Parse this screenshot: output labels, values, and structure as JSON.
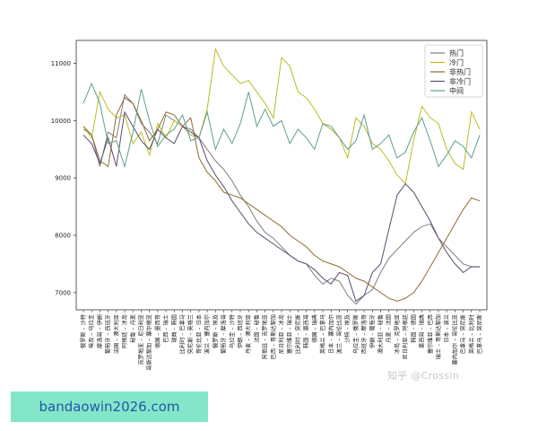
{
  "chart_data": {
    "type": "line",
    "ylim": [
      6700,
      11400
    ],
    "yticks": [
      7000,
      8000,
      9000,
      10000,
      11000
    ],
    "grid": false,
    "legend_position": "top-right",
    "categories": [
      "俄罗斯 – 沙特",
      "埃及 – 乌拉圭",
      "摩洛哥 – 伊朗",
      "葡萄牙 – 西班牙",
      "法国 – 澳大利亚",
      "阿根廷 – 冰岛",
      "秘鲁 – 丹麦",
      "克罗地亚 – 尼日利亚",
      "哥斯达黎加 – 塞尔维亚",
      "德国 – 墨西哥",
      "巴西 – 瑞士",
      "瑞典 – 韩国",
      "比利时 – 巴拿马",
      "突尼斯 – 英格兰",
      "哥伦比亚 – 日本",
      "波兰 – 塞内加尔",
      "俄罗斯 – 埃及",
      "葡萄牙 – 摩洛哥",
      "乌拉圭 – 沙特",
      "伊朗 – 西班牙",
      "丹麦 – 澳大利亚",
      "法国 – 秘鲁",
      "阿根廷 – 克罗地亚",
      "巴西 – 哥斯达黎加",
      "尼日利亚 – 冰岛",
      "塞尔维亚 – 瑞士",
      "比利时 – 突尼斯",
      "韩国 – 墨西哥",
      "德国 – 瑞典",
      "英格兰 – 巴拿马",
      "日本 – 塞内加尔",
      "波兰 – 哥伦比亚",
      "沙特 – 埃及",
      "乌拉圭 – 俄罗斯",
      "西班牙 – 摩洛哥",
      "伊朗 – 葡萄牙",
      "澳大利亚 – 秘鲁",
      "丹麦 – 法国",
      "冰岛 – 克罗地亚",
      "尼日利亚 – 阿根廷",
      "韩国 – 德国",
      "墨西哥 – 瑞典",
      "塞尔维亚 – 巴西",
      "瑞士 – 哥斯达黎加",
      "日本 – 波兰",
      "塞内加尔 – 哥伦比亚",
      "巴拿马 – 突尼斯",
      "英格兰 – 比利时",
      "巴拿马 – 突尼斯"
    ],
    "series": [
      {
        "name": "热门",
        "color": "#7f7f7f",
        "values": [
          9850,
          9750,
          9200,
          9800,
          9700,
          10450,
          10300,
          9950,
          9800,
          9600,
          10100,
          10000,
          9900,
          9850,
          9700,
          9500,
          9300,
          9150,
          8950,
          8700,
          8500,
          8250,
          8050,
          7950,
          7800,
          7650,
          7550,
          7500,
          7300,
          7150,
          7250,
          7200,
          6950,
          6800,
          6950,
          7050,
          7350,
          7600,
          7750,
          7900,
          8050,
          8150,
          8200,
          7950,
          7800,
          7650,
          7500,
          7450,
          7450
        ]
      },
      {
        "name": "冷门",
        "color": "#bcbd22",
        "values": [
          9900,
          9700,
          10500,
          10200,
          10050,
          10100,
          9600,
          9800,
          9400,
          9950,
          9700,
          10000,
          9900,
          9750,
          9700,
          10200,
          11250,
          10950,
          10800,
          10650,
          10700,
          10500,
          10300,
          10050,
          11100,
          10950,
          10500,
          10400,
          10200,
          9950,
          9850,
          9700,
          9350,
          10050,
          9900,
          9600,
          9500,
          9300,
          9050,
          8900,
          9650,
          10250,
          10050,
          9950,
          9500,
          9250,
          9150,
          10150,
          9850
        ]
      },
      {
        "name": "非热门",
        "color": "#8c6d31",
        "values": [
          9900,
          9750,
          9300,
          9200,
          10100,
          10400,
          10300,
          10000,
          9650,
          9850,
          10150,
          10100,
          9900,
          10050,
          9350,
          9100,
          8950,
          8750,
          8700,
          8650,
          8550,
          8450,
          8350,
          8250,
          8150,
          8000,
          7900,
          7800,
          7650,
          7550,
          7500,
          7450,
          7350,
          7250,
          7200,
          7100,
          7000,
          6900,
          6850,
          6900,
          7000,
          7200,
          7450,
          7700,
          7950,
          8200,
          8450,
          8650,
          8600
        ]
      },
      {
        "name": "非冷门",
        "color": "#5a4b6e",
        "values": [
          9750,
          9600,
          9250,
          9700,
          9200,
          10150,
          9900,
          9650,
          9500,
          9850,
          9700,
          9600,
          9900,
          9800,
          9700,
          9300,
          9050,
          8850,
          8600,
          8400,
          8200,
          8050,
          7950,
          7850,
          7750,
          7650,
          7550,
          7500,
          7400,
          7250,
          7150,
          7350,
          7300,
          6850,
          6950,
          7350,
          7500,
          8100,
          8700,
          8900,
          8750,
          8500,
          8250,
          7950,
          7700,
          7500,
          7350,
          7450,
          7450
        ]
      },
      {
        "name": "中间",
        "color": "#5f9e93",
        "values": [
          10300,
          10650,
          10300,
          9600,
          9650,
          9200,
          9800,
          10550,
          10000,
          9550,
          9750,
          9850,
          10100,
          9650,
          9700,
          10150,
          9500,
          9850,
          9600,
          9950,
          10500,
          9900,
          10200,
          9900,
          10000,
          9600,
          9850,
          9700,
          9500,
          9950,
          9900,
          9700,
          9500,
          9650,
          10100,
          9500,
          9600,
          9750,
          9350,
          9450,
          9800,
          10050,
          9650,
          9200,
          9400,
          9650,
          9550,
          9350,
          9750
        ]
      }
    ]
  },
  "watermark": "知乎 @Crossin",
  "banner": "bandaowin2026.com"
}
